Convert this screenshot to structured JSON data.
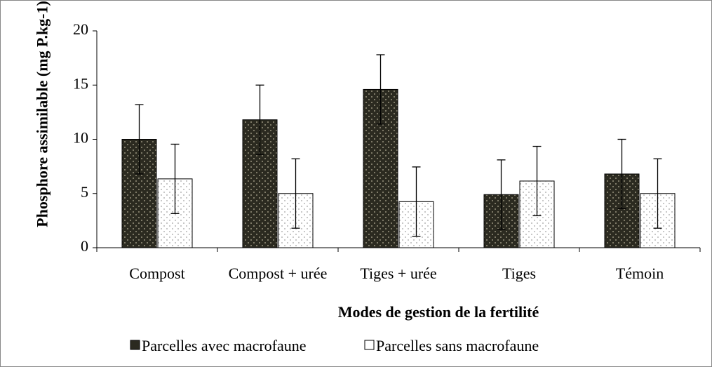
{
  "chart_data": {
    "type": "bar",
    "x_label": "Modes de gestion de la fertilité",
    "y_label": "Phosphore assimilable (mg P.kg-1)",
    "categories": [
      "Compost",
      "Compost + urée",
      "Tiges + urée",
      "Tiges",
      "Témoin"
    ],
    "series": [
      {
        "name": "Parcelles avec macrofaune",
        "color": "#2b2a20",
        "values": [
          10.0,
          11.8,
          14.6,
          4.9,
          6.8
        ],
        "errors": [
          3.2,
          3.2,
          3.2,
          3.2,
          3.2
        ]
      },
      {
        "name": "Parcelles sans macrofaune",
        "color": "#ffffff",
        "values": [
          6.35,
          5.0,
          4.25,
          6.15,
          5.0
        ],
        "errors": [
          3.2,
          3.2,
          3.2,
          3.2,
          3.2
        ]
      }
    ],
    "ylim": [
      0,
      20
    ],
    "yticks": [
      0,
      5,
      10,
      15,
      20
    ],
    "legend": "bottom"
  }
}
